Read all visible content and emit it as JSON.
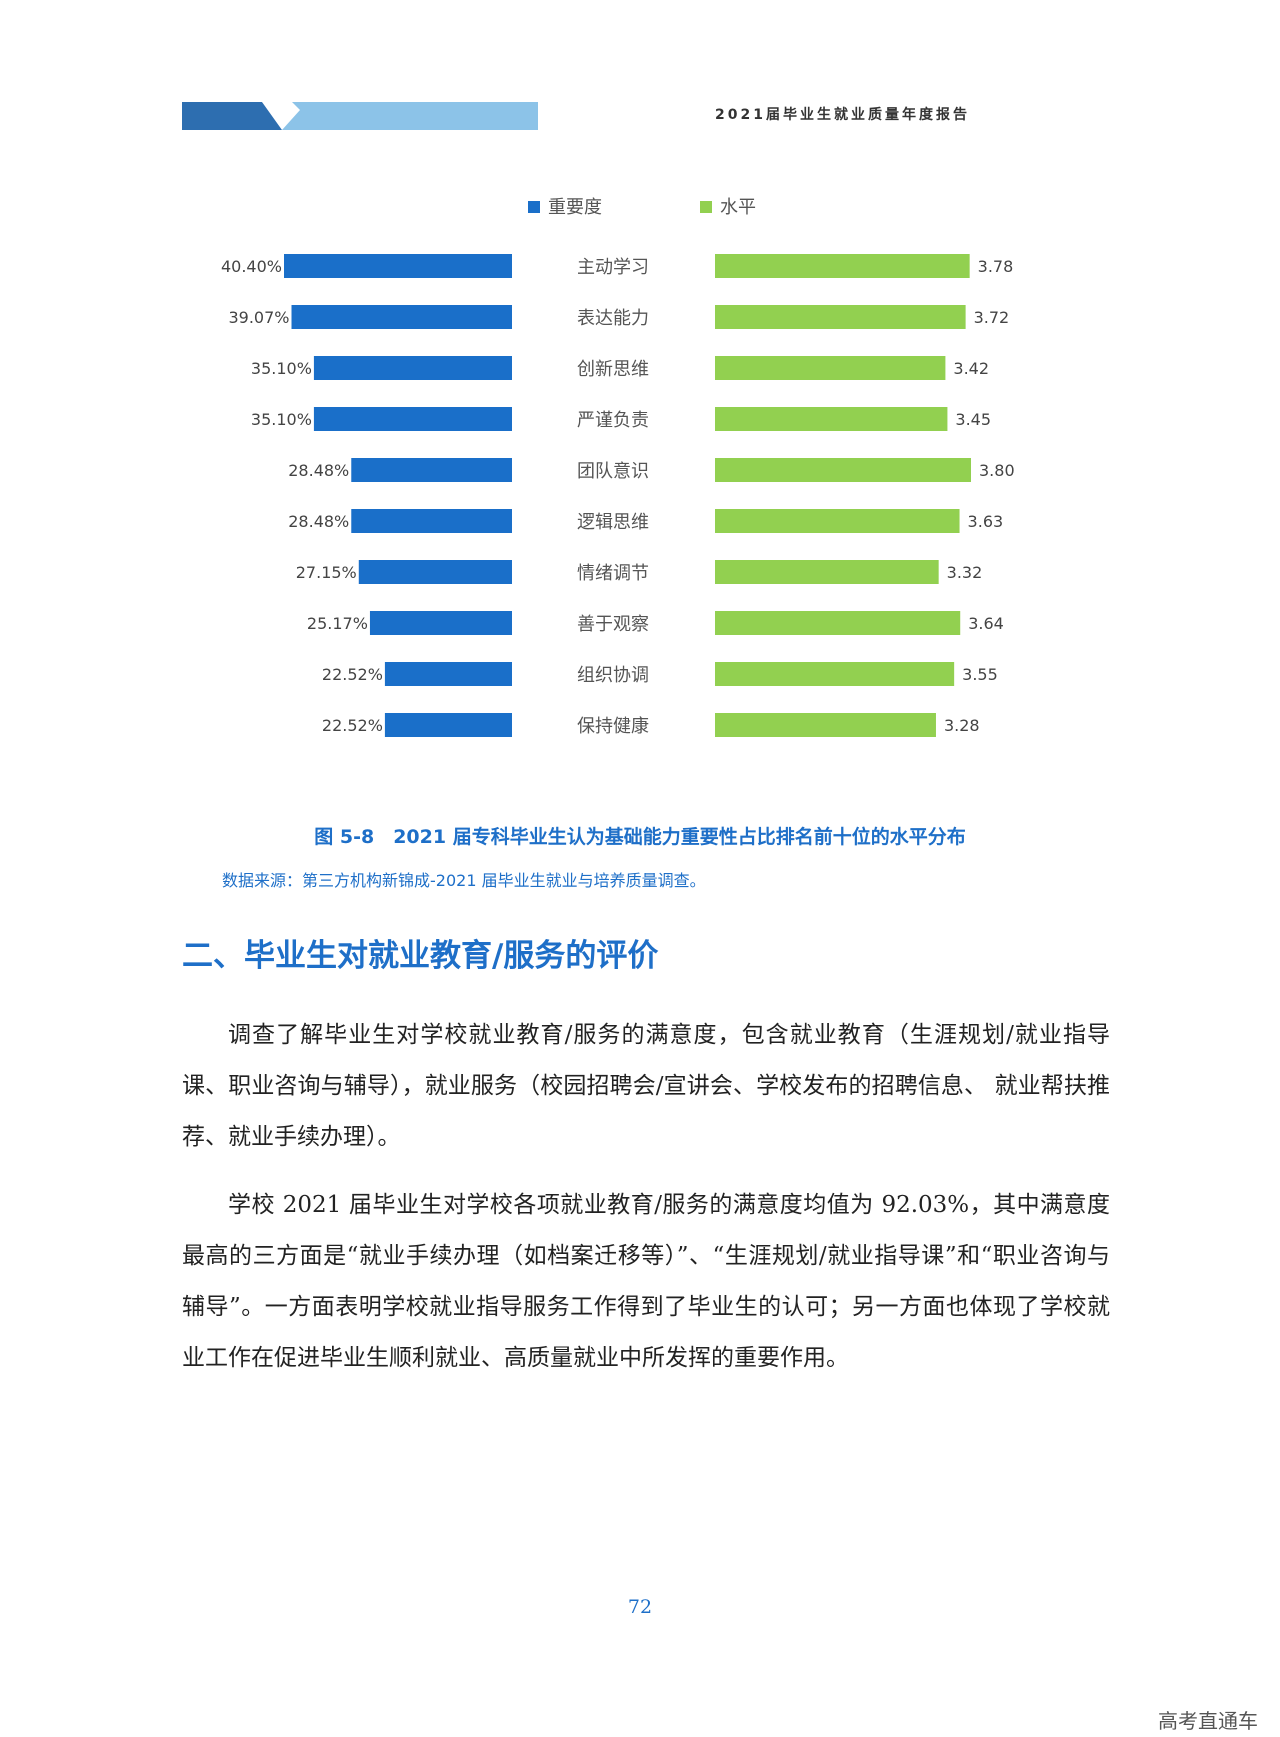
{
  "header": {
    "report_title": "2021届毕业生就业质量年度报告"
  },
  "chart_data": {
    "type": "bar",
    "legend": [
      "重要度",
      "水平"
    ],
    "categories": [
      "主动学习",
      "表达能力",
      "创新思维",
      "严谨负责",
      "团队意识",
      "逻辑思维",
      "情绪调节",
      "善于观察",
      "组织协调",
      "保持健康"
    ],
    "series": [
      {
        "name": "重要度",
        "values": [
          40.4,
          39.07,
          35.1,
          35.1,
          28.48,
          28.48,
          27.15,
          25.17,
          22.52,
          22.52
        ],
        "labels": [
          "40.40%",
          "39.07%",
          "35.10%",
          "35.10%",
          "28.48%",
          "28.48%",
          "27.15%",
          "25.17%",
          "22.52%",
          "22.52%"
        ],
        "color": "#1a6fc9"
      },
      {
        "name": "水平",
        "values": [
          3.78,
          3.72,
          3.42,
          3.45,
          3.8,
          3.63,
          3.32,
          3.64,
          3.55,
          3.28
        ],
        "labels": [
          "3.78",
          "3.72",
          "3.42",
          "3.45",
          "3.80",
          "3.63",
          "3.32",
          "3.64",
          "3.55",
          "3.28"
        ],
        "color": "#92d050"
      }
    ]
  },
  "figure": {
    "caption": "图 5-8　2021 届专科毕业生认为基础能力重要性占比排名前十位的水平分布",
    "source": "数据来源：第三方机构新锦成-2021 届毕业生就业与培养质量调查。"
  },
  "section": {
    "title": "二、毕业生对就业教育/服务的评价",
    "paragraphs": [
      "调查了解毕业生对学校就业教育/服务的满意度，包含就业教育（生涯规划/就业指导课、职业咨询与辅导），就业服务（校园招聘会/宣讲会、学校发布的招聘信息、 就业帮扶推荐、就业手续办理）。",
      "学校 2021 届毕业生对学校各项就业教育/服务的满意度均值为 92.03%，其中满意度最高的三方面是“就业手续办理（如档案迁移等）”、“生涯规划/就业指导课”和“职业咨询与辅导”。一方面表明学校就业指导服务工作得到了毕业生的认可；另一方面也体现了学校就业工作在促进毕业生顺利就业、高质量就业中所发挥的重要作用。"
    ]
  },
  "footer": {
    "page_number": "72",
    "watermark": "高考直通车"
  }
}
